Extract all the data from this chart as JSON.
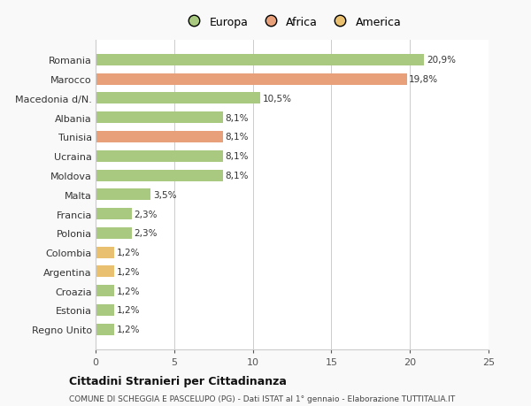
{
  "categories": [
    "Regno Unito",
    "Estonia",
    "Croazia",
    "Argentina",
    "Colombia",
    "Polonia",
    "Francia",
    "Malta",
    "Moldova",
    "Ucraina",
    "Tunisia",
    "Albania",
    "Macedonia d/N.",
    "Marocco",
    "Romania"
  ],
  "values": [
    1.2,
    1.2,
    1.2,
    1.2,
    1.2,
    2.3,
    2.3,
    3.5,
    8.1,
    8.1,
    8.1,
    8.1,
    10.5,
    19.8,
    20.9
  ],
  "labels": [
    "1,2%",
    "1,2%",
    "1,2%",
    "1,2%",
    "1,2%",
    "2,3%",
    "2,3%",
    "3,5%",
    "8,1%",
    "8,1%",
    "8,1%",
    "8,1%",
    "10,5%",
    "19,8%",
    "20,9%"
  ],
  "colors": [
    "#a8c97f",
    "#a8c97f",
    "#a8c97f",
    "#e8c070",
    "#e8c070",
    "#a8c97f",
    "#a8c97f",
    "#a8c97f",
    "#a8c97f",
    "#a8c97f",
    "#e8a07a",
    "#a8c97f",
    "#a8c97f",
    "#e8a07a",
    "#a8c97f"
  ],
  "legend": [
    {
      "label": "Europa",
      "color": "#a8c97f"
    },
    {
      "label": "Africa",
      "color": "#e8a07a"
    },
    {
      "label": "America",
      "color": "#e8c070"
    }
  ],
  "xlim": [
    0,
    25
  ],
  "xticks": [
    0,
    5,
    10,
    15,
    20,
    25
  ],
  "title": "Cittadini Stranieri per Cittadinanza",
  "subtitle": "COMUNE DI SCHEGGIA E PASCELUPO (PG) - Dati ISTAT al 1° gennaio - Elaborazione TUTTITALIA.IT",
  "bg_color": "#f9f9f9",
  "bar_bg_color": "#ffffff",
  "grid_color": "#cccccc"
}
